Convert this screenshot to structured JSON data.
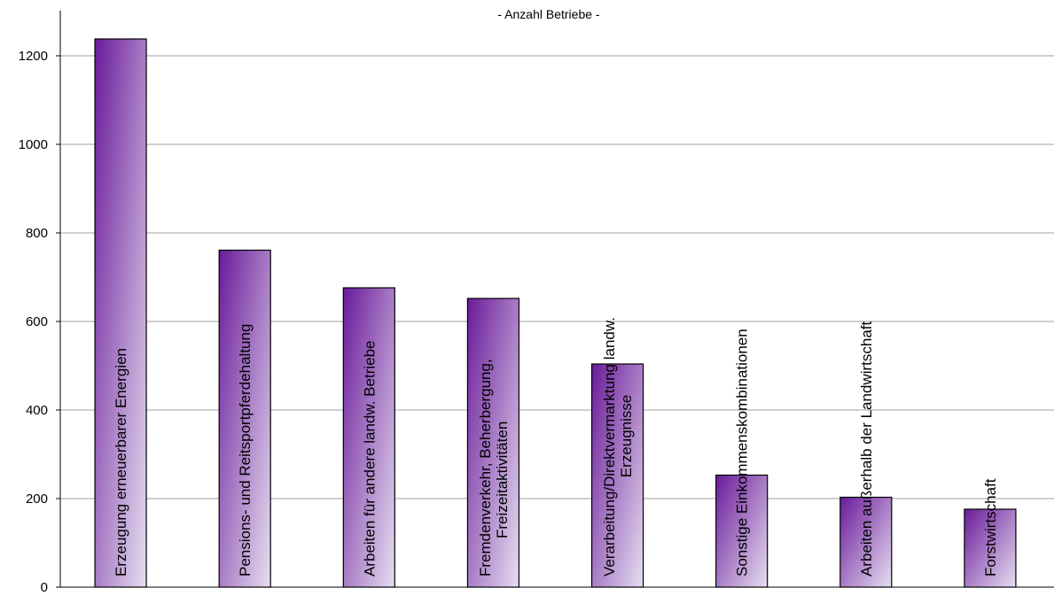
{
  "chart_data": {
    "type": "bar",
    "title": "- Anzahl Betriebe -",
    "xlabel": "",
    "ylabel": "",
    "ylim": [
      0,
      1200
    ],
    "yticks": [
      0,
      200,
      400,
      600,
      800,
      1000,
      1200
    ],
    "grid": true,
    "legend": "none",
    "categories": [
      "Erzeugung erneuerbarer Energien",
      "Pensions- und Reitsportpferdehaltung",
      "Arbeiten für andere landw. Betriebe",
      "Fremdenverkehr, Beherbergung, Freizeitaktivitäten",
      "Verarbeitung/Direktvermarktung landw. Erzeugnisse",
      "Sonstige Einkommenskombinationen",
      "Arbeiten außerhalb der Landwirtschaft",
      "Forstwirtschaft"
    ],
    "category_lines": [
      [
        "Erzeugung erneuerbarer Energien"
      ],
      [
        "Pensions- und Reitsportpferdehaltung"
      ],
      [
        "Arbeiten für andere landw. Betriebe"
      ],
      [
        "Fremdenverkehr, Beherbergung,",
        "Freizeitaktivitäten"
      ],
      [
        "Verarbeitung/Direktvermarktung landw.",
        "Erzeugnisse"
      ],
      [
        "Sonstige Einkommenskombinationen"
      ],
      [
        "Arbeiten außerhalb der Landwirtschaft"
      ],
      [
        "Forstwirtschaft"
      ]
    ],
    "values": [
      1238,
      761,
      676,
      652,
      504,
      253,
      203,
      176
    ],
    "colors": {
      "bar_dark": "#6a1b9a",
      "bar_light": "#e6def0",
      "grid": "#a0a0a0",
      "axis": "#000000"
    }
  }
}
